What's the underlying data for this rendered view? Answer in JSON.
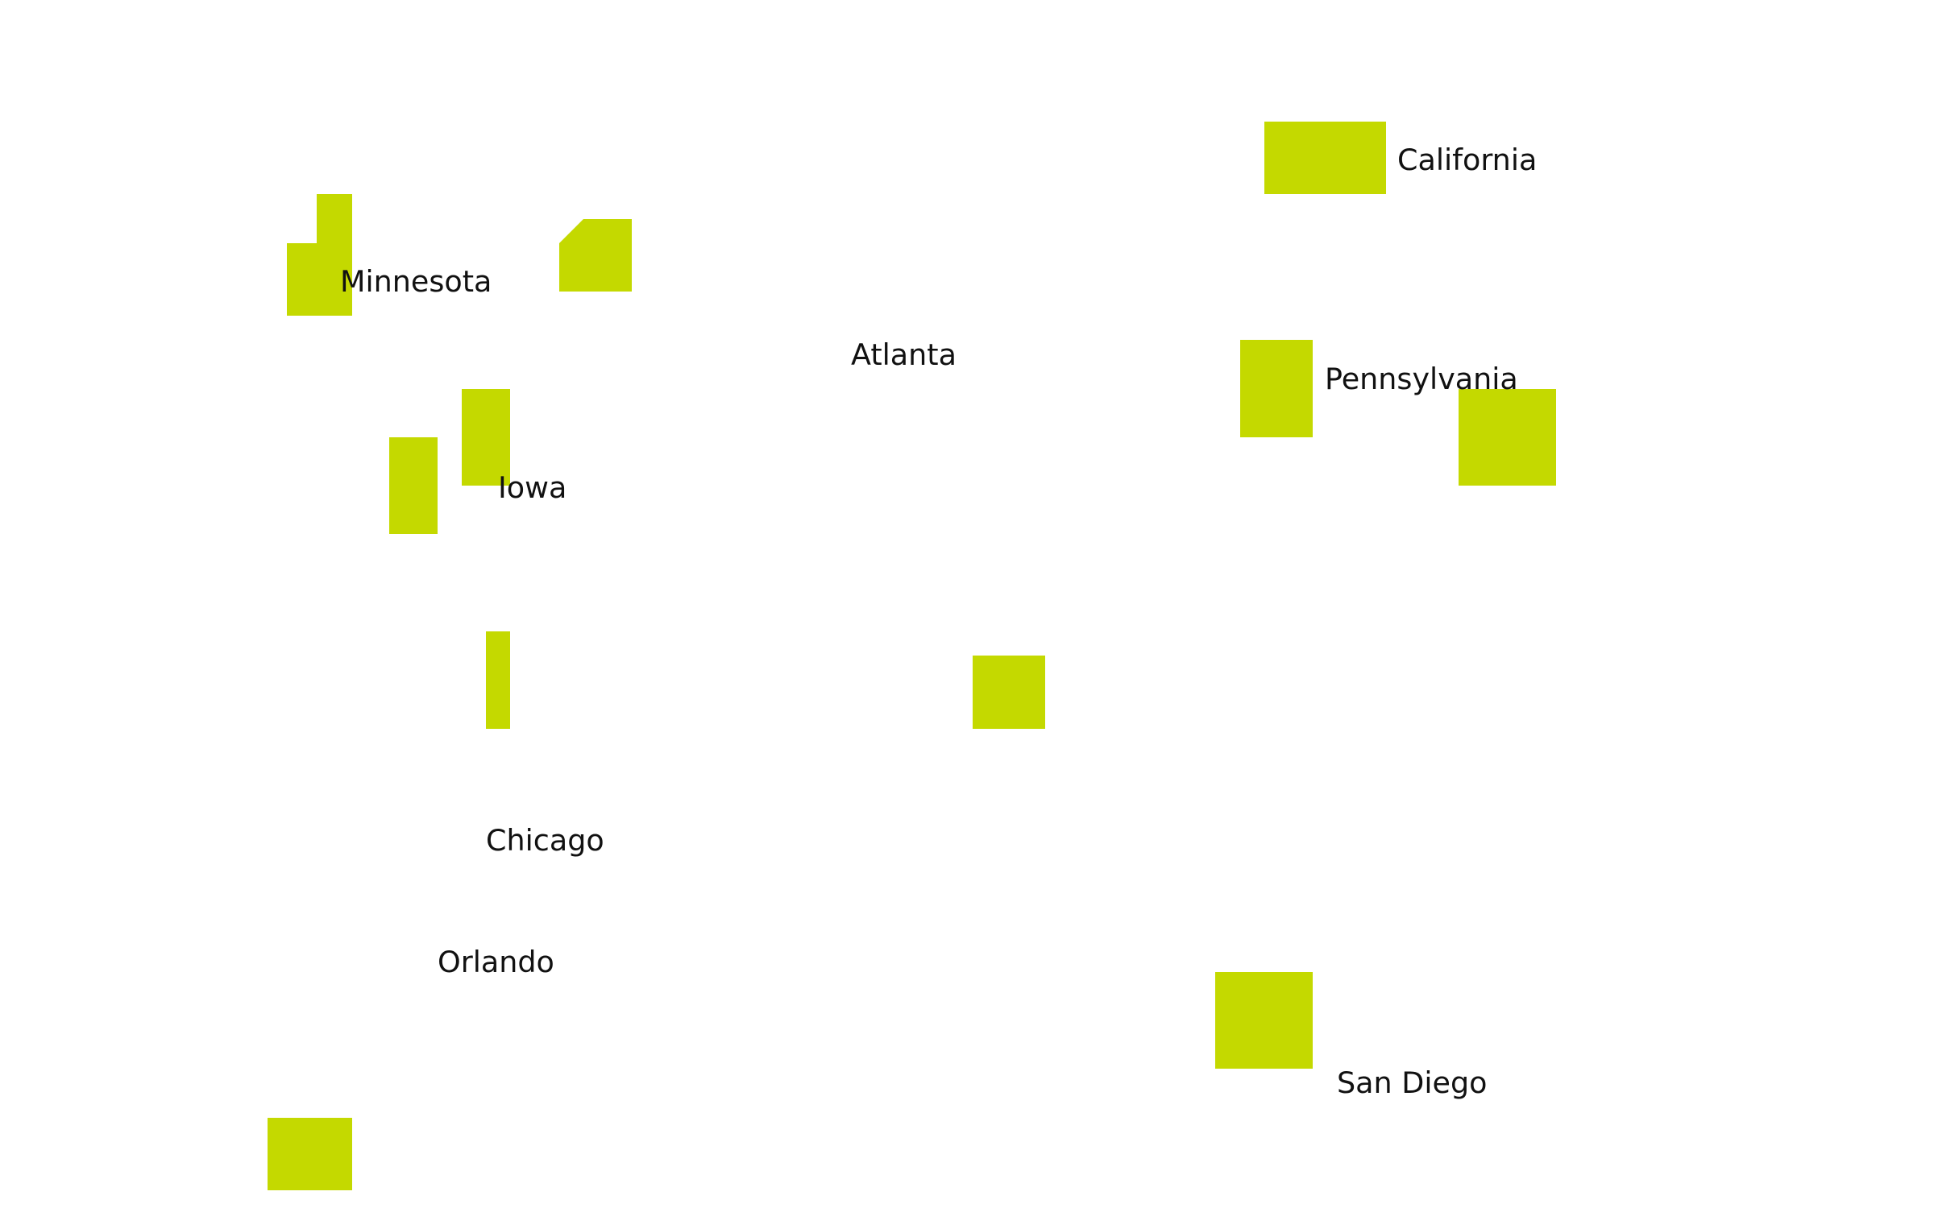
{
  "map": {
    "fill_color": "#c4d900",
    "text_color": "#111111",
    "background": "#ffffff",
    "labels": {
      "california": "California",
      "minnesota": "Minnesota",
      "atlanta": "Atlanta",
      "pennsylvania": "Pennsylvania",
      "iowa": "Iowa",
      "chicago": "Chicago",
      "orlando": "Orlando",
      "san_diego": "San Diego"
    }
  }
}
